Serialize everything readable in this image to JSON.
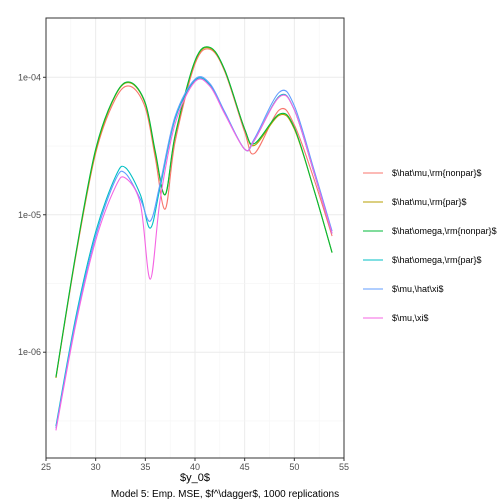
{
  "chart_data": {
    "type": "line",
    "xlabel": "$y_0$",
    "ylabel": "",
    "caption": "Model 5: Emp. MSE, $f^\\dagger$, 1000 replications",
    "x_scale": "linear",
    "y_scale": "log10",
    "xlim": [
      25,
      55
    ],
    "ylim": [
      1.7e-07,
      0.00027
    ],
    "x_ticks": [
      25,
      30,
      35,
      40,
      45,
      50,
      55
    ],
    "y_ticks": [
      1e-06,
      1e-05,
      0.0001
    ],
    "y_tick_labels": [
      "1e-06",
      "1e-05",
      "1e-04"
    ],
    "grid": true,
    "legend_position": "right",
    "series": [
      {
        "name": "$\\hat\\mu,\\rm{nonpar}$",
        "color": "#F8766D",
        "x": [
          26,
          28,
          30,
          32,
          33.5,
          35,
          36,
          37,
          38,
          40,
          41.5,
          43,
          45,
          46,
          48.5,
          50,
          52,
          53.8
        ],
        "y": [
          6.5e-07,
          5e-06,
          2.8e-05,
          7e-05,
          8.6e-05,
          6e-05,
          2.6e-05,
          1.1e-05,
          3.4e-05,
          0.000125,
          0.00016,
          0.00011,
          4e-05,
          2.8e-05,
          5.8e-05,
          4.5e-05,
          1.8e-05,
          7e-06
        ]
      },
      {
        "name": "$\\hat\\mu,\\rm{par}$",
        "color": "#B79F00",
        "x": [
          26,
          28,
          30,
          32,
          33.5,
          35,
          36,
          37,
          38,
          40,
          41.5,
          43,
          45,
          46,
          48.5,
          50,
          52,
          53.8
        ],
        "y": [
          6.5e-07,
          5.1e-06,
          2.9e-05,
          7.4e-05,
          9.1e-05,
          6.4e-05,
          2.8e-05,
          1.4e-05,
          3.7e-05,
          0.00013,
          0.000163,
          0.000112,
          4.2e-05,
          3.2e-05,
          5.3e-05,
          4.2e-05,
          1.5e-05,
          5.3e-06
        ]
      },
      {
        "name": "$\\hat\\omega,\\rm{nonpar}$",
        "color": "#00BA38",
        "x": [
          26,
          28,
          30,
          32,
          33.5,
          35,
          36,
          37,
          38,
          40,
          41.5,
          43,
          45,
          46,
          48.5,
          50,
          52,
          53.8
        ],
        "y": [
          6.6e-07,
          5.2e-06,
          3e-05,
          7.5e-05,
          9.2e-05,
          6.5e-05,
          2.9e-05,
          1.4e-05,
          3.8e-05,
          0.000132,
          0.000165,
          0.000113,
          4.2e-05,
          3.3e-05,
          5.4e-05,
          4.3e-05,
          1.5e-05,
          5.3e-06
        ]
      },
      {
        "name": "$\\hat\\omega,\\rm{par}$",
        "color": "#00BFC4",
        "x": [
          26,
          28,
          30,
          32,
          33,
          34.5,
          35.5,
          36.5,
          38,
          40,
          41.5,
          43,
          45,
          46,
          48.5,
          50,
          52,
          53.8
        ],
        "y": [
          2.9e-07,
          1.8e-06,
          7.5e-06,
          1.9e-05,
          2.2e-05,
          1.4e-05,
          8e-06,
          1.6e-05,
          5e-05,
          9.5e-05,
          8.8e-05,
          5.5e-05,
          3e-05,
          3.5e-05,
          7.3e-05,
          5.8e-05,
          2e-05,
          7.3e-06
        ]
      },
      {
        "name": "$\\mu,\\hat\\xi$",
        "color": "#619CFF",
        "x": [
          26,
          28,
          30,
          32,
          33,
          34.5,
          35.5,
          36.5,
          38,
          40,
          41.5,
          43,
          45,
          46,
          48.5,
          50,
          52,
          53.8
        ],
        "y": [
          2.8e-07,
          1.7e-06,
          7e-06,
          1.8e-05,
          2e-05,
          1.3e-05,
          9e-06,
          1.7e-05,
          5.2e-05,
          9.7e-05,
          9e-05,
          5.6e-05,
          3e-05,
          3.6e-05,
          7.8e-05,
          6.2e-05,
          2.1e-05,
          7.6e-06
        ]
      },
      {
        "name": "$\\mu,\\xi$",
        "color": "#F564E3",
        "x": [
          26,
          28,
          30,
          32,
          33,
          34.5,
          35.5,
          36.5,
          38,
          40,
          41.5,
          43,
          45,
          46,
          48.5,
          50,
          52,
          53.8
        ],
        "y": [
          2.7e-07,
          1.6e-06,
          6.5e-06,
          1.6e-05,
          1.85e-05,
          1.2e-05,
          3.4e-06,
          1.3e-05,
          4.6e-05,
          9.3e-05,
          8.6e-05,
          5.4e-05,
          3e-05,
          3.5e-05,
          7.2e-05,
          5.8e-05,
          2e-05,
          7.3e-06
        ]
      }
    ]
  }
}
